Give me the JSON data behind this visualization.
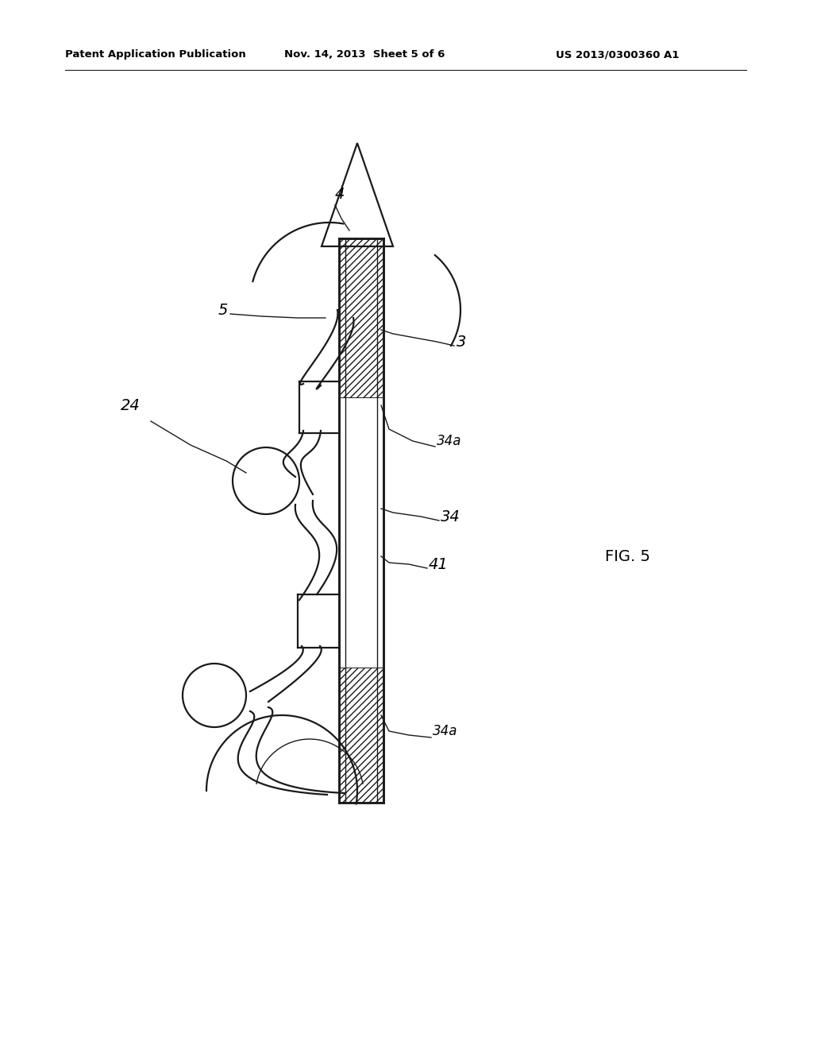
{
  "bg_color": "#ffffff",
  "line_color": "#1a1a1a",
  "header_left": "Patent Application Publication",
  "header_mid": "Nov. 14, 2013  Sheet 5 of 6",
  "header_right": "US 2013/0300360 A1",
  "fig_label": "FIG. 5",
  "lw_main": 1.6,
  "lw_thin": 1.0
}
